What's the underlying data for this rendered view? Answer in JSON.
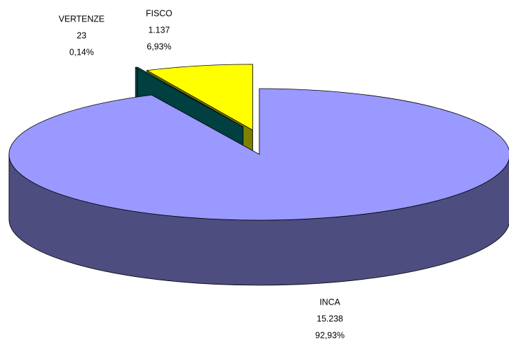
{
  "chart_data": {
    "type": "pie3d",
    "categories": [
      "INCA",
      "VERTENZE",
      "FISCO"
    ],
    "values": [
      15238,
      23,
      1137
    ],
    "value_labels": [
      "15.238",
      "23",
      "1.137"
    ],
    "percent_labels": [
      "92,93%",
      "0,14%",
      "6,93%"
    ],
    "colors": [
      "#9999ff",
      "#008080",
      "#ffff00"
    ],
    "side_colors": [
      "#4d4d80",
      "#004040",
      "#808000"
    ]
  }
}
